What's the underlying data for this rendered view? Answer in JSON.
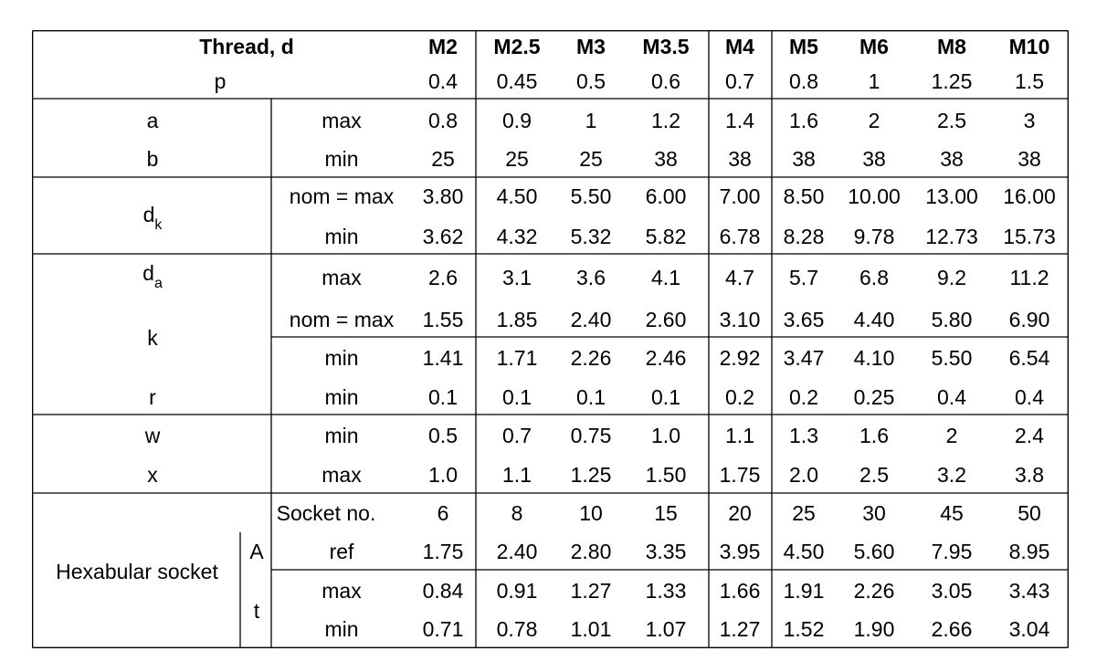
{
  "table": {
    "header": {
      "thread_label": "Thread, d",
      "sizes": [
        "M2",
        "M2.5",
        "M3",
        "M3.5",
        "M4",
        "M5",
        "M6",
        "M8",
        "M10"
      ],
      "pitch_label": "p",
      "pitch": [
        "0.4",
        "0.45",
        "0.5",
        "0.6",
        "0.7",
        "0.8",
        "1",
        "1.25",
        "1.5"
      ]
    },
    "rows": [
      {
        "symbol": "a",
        "sub": "",
        "qual": "max",
        "values": [
          "0.8",
          "0.9",
          "1",
          "1.2",
          "1.4",
          "1.6",
          "2",
          "2.5",
          "3"
        ]
      },
      {
        "symbol": "b",
        "sub": "",
        "qual": "min",
        "values": [
          "25",
          "25",
          "25",
          "38",
          "38",
          "38",
          "38",
          "38",
          "38"
        ]
      },
      {
        "symbol": "d",
        "sub": "k",
        "qual": "nom = max",
        "values": [
          "3.80",
          "4.50",
          "5.50",
          "6.00",
          "7.00",
          "8.50",
          "10.00",
          "13.00",
          "16.00"
        ]
      },
      {
        "symbol": "",
        "sub": "",
        "qual": "min",
        "values": [
          "3.62",
          "4.32",
          "5.32",
          "5.82",
          "6.78",
          "8.28",
          "9.78",
          "12.73",
          "15.73"
        ]
      },
      {
        "symbol": "d",
        "sub": "a",
        "qual": "max",
        "values": [
          "2.6",
          "3.1",
          "3.6",
          "4.1",
          "4.7",
          "5.7",
          "6.8",
          "9.2",
          "11.2"
        ]
      },
      {
        "symbol": "k",
        "sub": "",
        "qual": "nom = max",
        "values": [
          "1.55",
          "1.85",
          "2.40",
          "2.60",
          "3.10",
          "3.65",
          "4.40",
          "5.80",
          "6.90"
        ]
      },
      {
        "symbol": "",
        "sub": "",
        "qual": "min",
        "values": [
          "1.41",
          "1.71",
          "2.26",
          "2.46",
          "2.92",
          "3.47",
          "4.10",
          "5.50",
          "6.54"
        ]
      },
      {
        "symbol": "r",
        "sub": "",
        "qual": "min",
        "values": [
          "0.1",
          "0.1",
          "0.1",
          "0.1",
          "0.2",
          "0.2",
          "0.25",
          "0.4",
          "0.4"
        ]
      },
      {
        "symbol": "w",
        "sub": "",
        "qual": "min",
        "values": [
          "0.5",
          "0.7",
          "0.75",
          "1.0",
          "1.1",
          "1.3",
          "1.6",
          "2",
          "2.4"
        ]
      },
      {
        "symbol": "x",
        "sub": "",
        "qual": "max",
        "values": [
          "1.0",
          "1.1",
          "1.25",
          "1.50",
          "1.75",
          "2.0",
          "2.5",
          "3.2",
          "3.8"
        ]
      },
      {
        "symbol": "",
        "sub": "",
        "qual": "Socket no.",
        "values": [
          "6",
          "8",
          "10",
          "15",
          "20",
          "25",
          "30",
          "45",
          "50"
        ]
      },
      {
        "symbol": "A",
        "sub": "",
        "qual": "ref",
        "values": [
          "1.75",
          "2.40",
          "2.80",
          "3.35",
          "3.95",
          "4.50",
          "5.60",
          "7.95",
          "8.95"
        ]
      },
      {
        "symbol": "t",
        "sub": "",
        "qual": "max",
        "values": [
          "0.84",
          "0.91",
          "1.27",
          "1.33",
          "1.66",
          "1.91",
          "2.26",
          "3.05",
          "3.43"
        ]
      },
      {
        "symbol": "",
        "sub": "",
        "qual": "min",
        "values": [
          "0.71",
          "0.78",
          "1.01",
          "1.07",
          "1.27",
          "1.52",
          "1.90",
          "2.66",
          "3.04"
        ]
      }
    ],
    "socket_label": "Hexabular socket"
  }
}
